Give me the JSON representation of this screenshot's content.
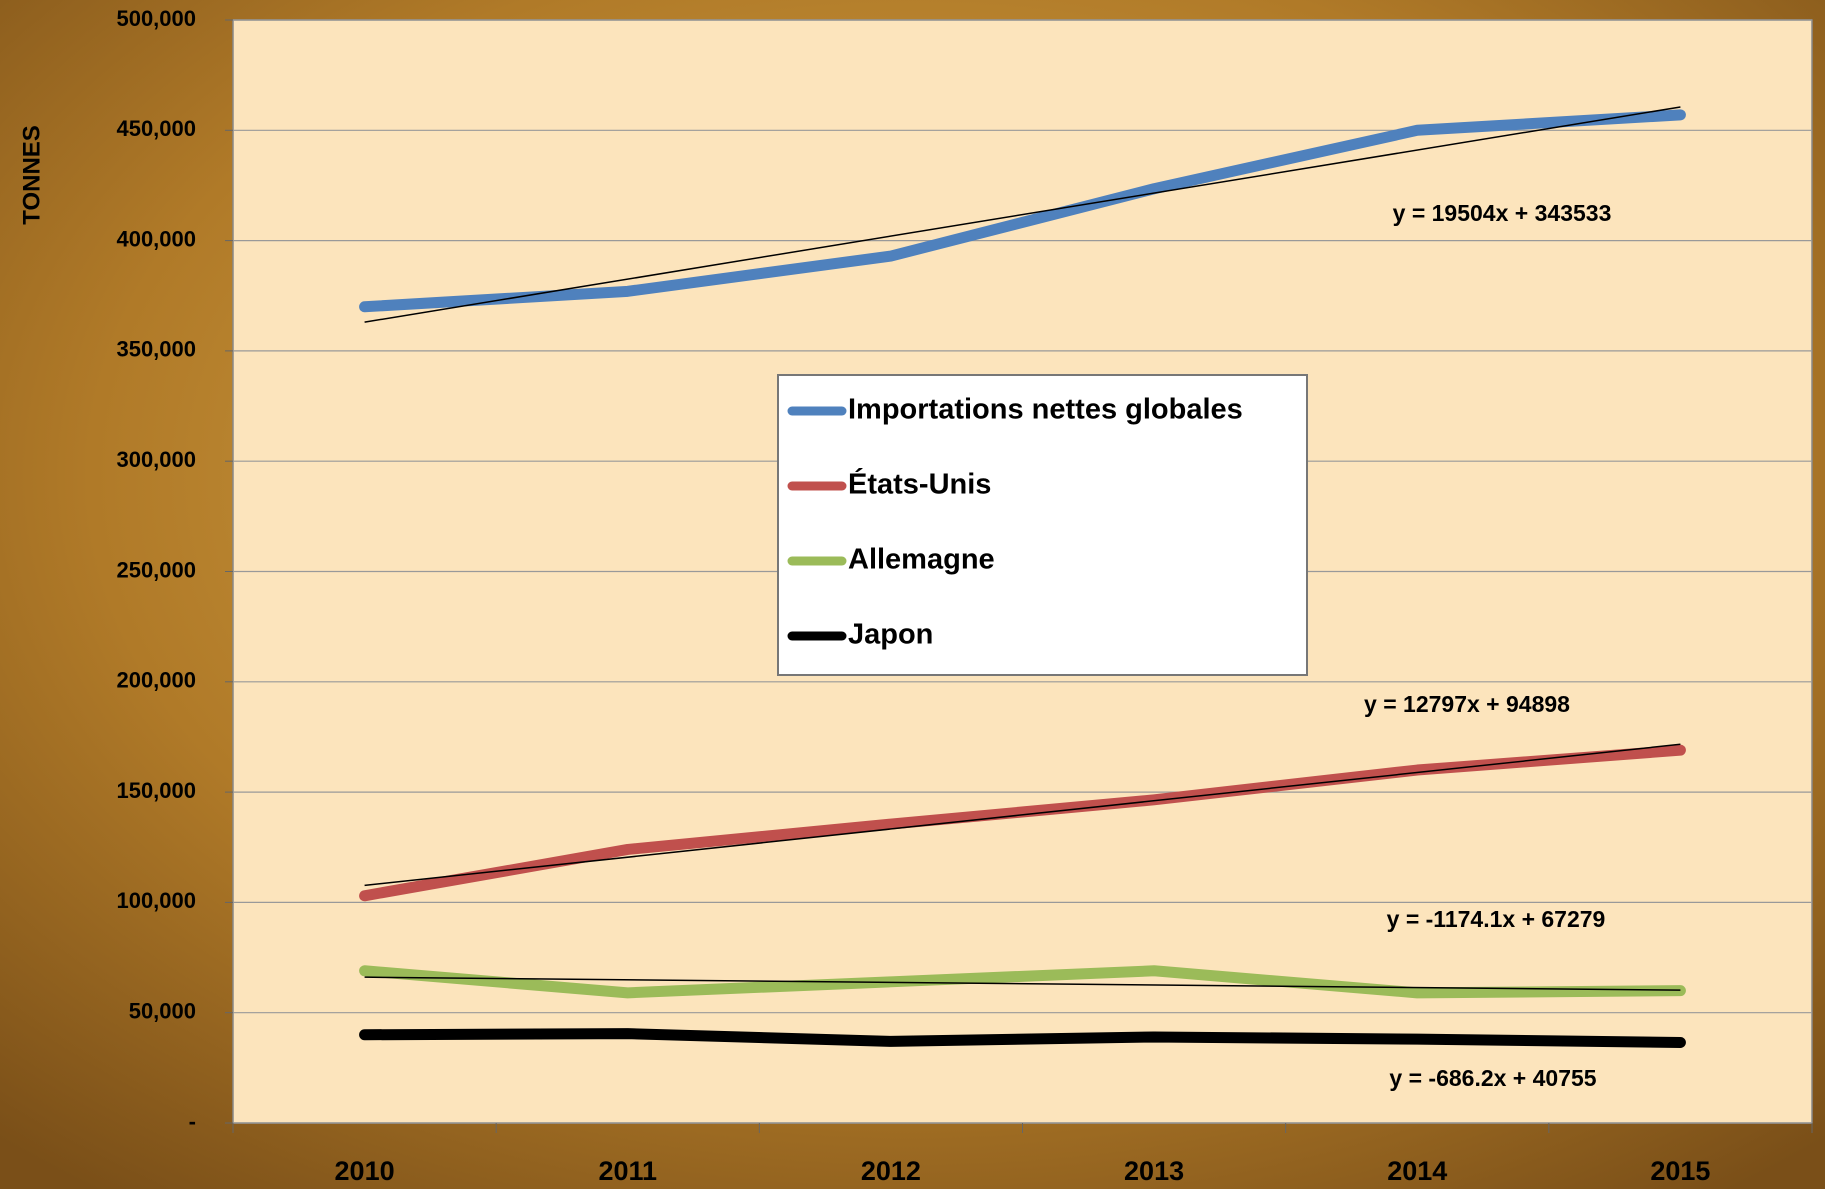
{
  "chart_data": {
    "type": "line",
    "y_axis_label": "TONNES",
    "categories": [
      "2010",
      "2011",
      "2012",
      "2013",
      "2014",
      "2015"
    ],
    "series": [
      {
        "name": "Importations nettes globales",
        "color": "#4f81bd",
        "values": [
          370000,
          377000,
          393000,
          423500,
          450000,
          457000
        ]
      },
      {
        "name": "États-Unis",
        "color": "#c0504d",
        "values": [
          103000,
          124000,
          135500,
          146500,
          160000,
          169000
        ]
      },
      {
        "name": "Allemagne",
        "color": "#9bbb59",
        "values": [
          69000,
          59000,
          64000,
          69000,
          59000,
          60000
        ]
      },
      {
        "name": "Japon",
        "color": "#000000",
        "values": [
          40000,
          40500,
          37000,
          39000,
          38000,
          36500
        ]
      }
    ],
    "trendlines": [
      {
        "label": "y = 19504x + 343533",
        "slope": 19504,
        "intercept": 343533
      },
      {
        "label": "y = 12797x + 94898",
        "slope": 12797,
        "intercept": 94898
      },
      {
        "label": "y = -1174.1x + 67279",
        "slope": -1174.1,
        "intercept": 67279
      },
      {
        "label": "y = -686.2x + 40755",
        "slope": -686.2,
        "intercept": 40755
      }
    ],
    "ylim": [
      0,
      500000
    ],
    "yticks": [
      {
        "value": 0,
        "label": "-"
      },
      {
        "value": 50000,
        "label": "50,000"
      },
      {
        "value": 100000,
        "label": "100,000"
      },
      {
        "value": 150000,
        "label": "150,000"
      },
      {
        "value": 200000,
        "label": "200,000"
      },
      {
        "value": 250000,
        "label": "250,000"
      },
      {
        "value": 300000,
        "label": "300,000"
      },
      {
        "value": 350000,
        "label": "350,000"
      },
      {
        "value": 400000,
        "label": "400,000"
      },
      {
        "value": 450000,
        "label": "450,000"
      },
      {
        "value": 500000,
        "label": "500,000"
      }
    ],
    "grid": true,
    "plot_background": "#fce4bc"
  }
}
